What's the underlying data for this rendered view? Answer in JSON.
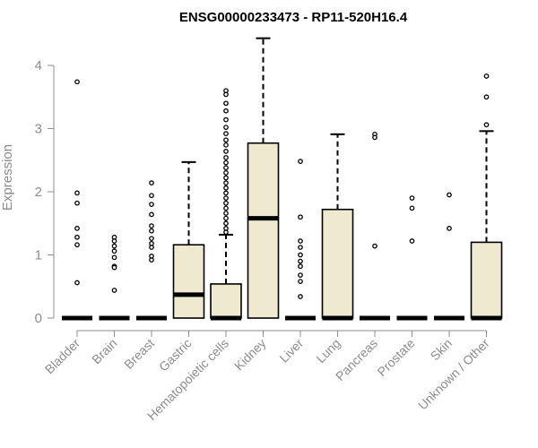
{
  "chart_data": {
    "type": "box",
    "title": "ENSG00000233473 - RP11-520H16.4",
    "xlabel": "",
    "ylabel": "Expression",
    "ylim": [
      0,
      4.45
    ],
    "yticks": [
      0,
      1,
      2,
      3,
      4
    ],
    "grid": false,
    "legend": "none",
    "colors": {
      "box_fill": "#efe9d0",
      "stroke": "#000000",
      "axis": "#8c8c8c"
    },
    "categories": [
      "Bladder",
      "Brain",
      "Breast",
      "Gastric",
      "Hematopoietic cells",
      "Kidney",
      "Liver",
      "Lung",
      "Pancreas",
      "Prostate",
      "Skin",
      "Unknown / Other"
    ],
    "boxes": [
      {
        "q1": 0,
        "median": 0,
        "q3": 0,
        "whisker_low": 0,
        "whisker_high": 0,
        "outliers": [
          3.74,
          1.98,
          1.82,
          1.42,
          1.28,
          1.16,
          0.56
        ]
      },
      {
        "q1": 0,
        "median": 0,
        "q3": 0,
        "whisker_low": 0,
        "whisker_high": 0,
        "outliers": [
          1.28,
          1.22,
          1.14,
          1.06,
          0.96,
          0.82,
          0.8,
          0.44
        ]
      },
      {
        "q1": 0,
        "median": 0,
        "q3": 0,
        "whisker_low": 0,
        "whisker_high": 0,
        "outliers": [
          2.14,
          1.94,
          1.8,
          1.64,
          1.46,
          1.38,
          1.26,
          1.18,
          1.12,
          0.98,
          0.92
        ]
      },
      {
        "q1": 0,
        "median": 0.37,
        "q3": 1.16,
        "whisker_low": 0,
        "whisker_high": 2.47,
        "outliers": []
      },
      {
        "q1": 0,
        "median": 0,
        "q3": 0.54,
        "whisker_low": 0,
        "whisker_high": 1.32,
        "outliers": [
          3.6,
          3.54,
          3.4,
          3.28,
          3.14,
          3.02,
          2.92,
          2.82,
          2.74,
          2.64,
          2.54,
          2.46,
          2.38,
          2.3,
          2.22,
          2.14,
          2.06,
          1.98,
          1.9,
          1.82,
          1.74,
          1.66,
          1.58,
          1.5,
          1.42,
          1.36
        ]
      },
      {
        "q1": 0,
        "median": 1.58,
        "q3": 2.77,
        "whisker_low": 0,
        "whisker_high": 4.43,
        "outliers": []
      },
      {
        "q1": 0,
        "median": 0,
        "q3": 0,
        "whisker_low": 0,
        "whisker_high": 0,
        "outliers": [
          2.48,
          1.6,
          1.22,
          1.12,
          1.0,
          0.9,
          0.82,
          0.68,
          0.58,
          0.34
        ]
      },
      {
        "q1": 0,
        "median": 0,
        "q3": 1.72,
        "whisker_low": 0,
        "whisker_high": 2.91,
        "outliers": []
      },
      {
        "q1": 0,
        "median": 0,
        "q3": 0,
        "whisker_low": 0,
        "whisker_high": 0,
        "outliers": [
          2.91,
          2.86,
          1.14
        ]
      },
      {
        "q1": 0,
        "median": 0,
        "q3": 0,
        "whisker_low": 0,
        "whisker_high": 0,
        "outliers": [
          1.9,
          1.74,
          1.22
        ]
      },
      {
        "q1": 0,
        "median": 0,
        "q3": 0,
        "whisker_low": 0,
        "whisker_high": 0,
        "outliers": [
          1.95,
          1.42
        ]
      },
      {
        "q1": 0,
        "median": 0,
        "q3": 1.2,
        "whisker_low": 0,
        "whisker_high": 2.96,
        "outliers": [
          3.83,
          3.5,
          3.06
        ]
      }
    ]
  }
}
